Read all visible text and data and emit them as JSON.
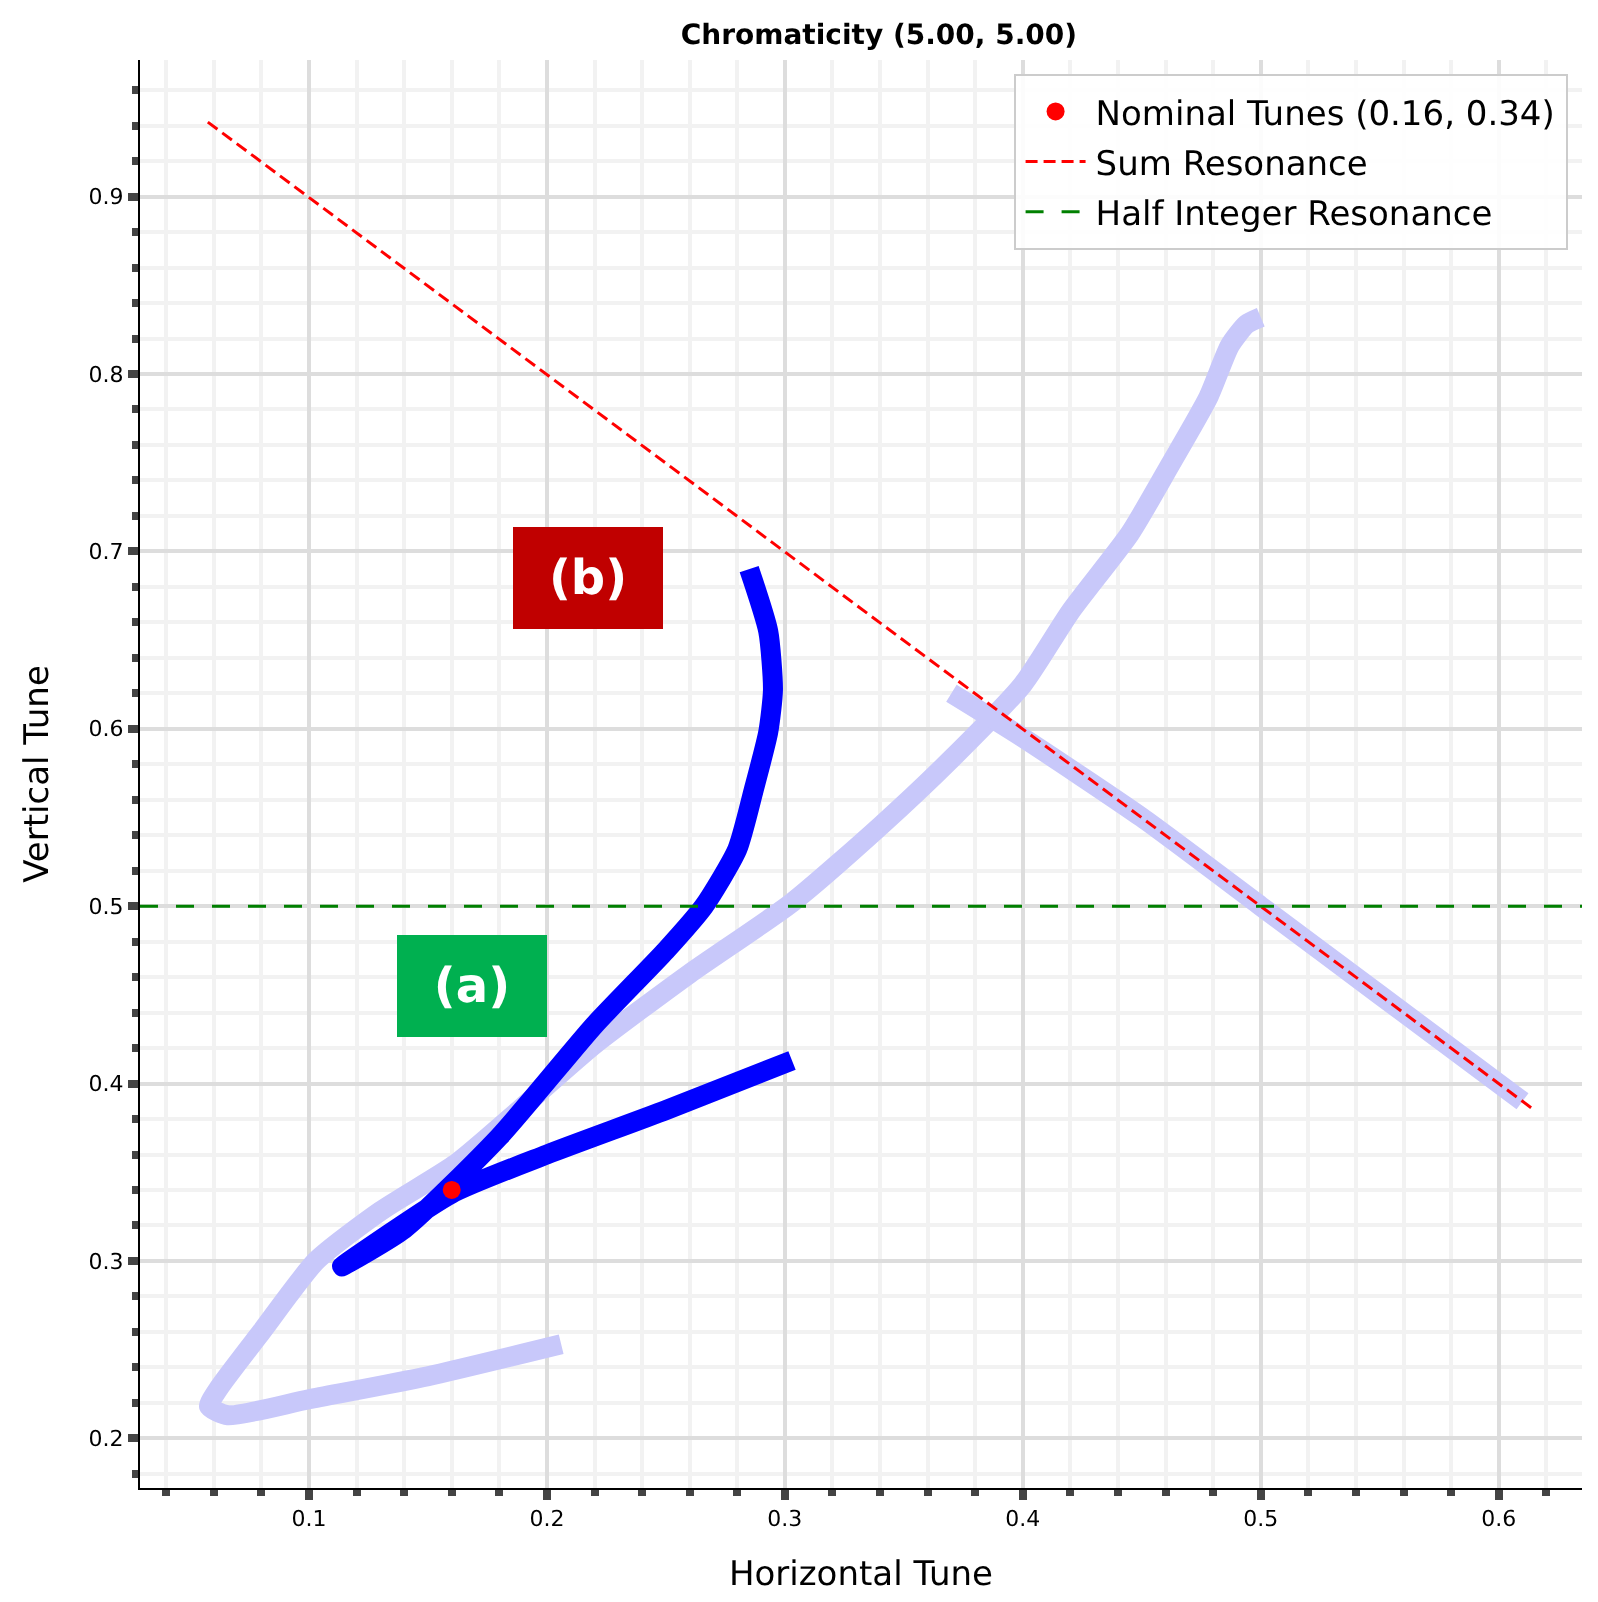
{
  "chart_data": {
    "type": "line",
    "title": "Chromaticity (5.00, 5.00)",
    "xlabel": "Horizontal Tune",
    "ylabel": "Vertical Tune",
    "xlim": [
      0.029,
      0.635
    ],
    "ylim": [
      0.172,
      0.977
    ],
    "xticks": [
      0.1,
      0.2,
      0.3,
      0.4,
      0.5,
      0.6
    ],
    "yticks": [
      0.2,
      0.3,
      0.4,
      0.5,
      0.6,
      0.7,
      0.8,
      0.9
    ],
    "grid": true,
    "legend": "top right",
    "series": [
      {
        "color": "#c8c8fa",
        "x": [
          0.206,
          0.15,
          0.1,
          0.066,
          0.058,
          0.062,
          0.08,
          0.103,
          0.13,
          0.162,
          0.19,
          0.22,
          0.26,
          0.303,
          0.34,
          0.37,
          0.4,
          0.42,
          0.445,
          0.462,
          0.478,
          0.487,
          0.494,
          0.5,
          null,
          0.37,
          0.4,
          0.45,
          0.5,
          0.55,
          0.61
        ],
        "values": [
          0.253,
          0.235,
          0.222,
          0.213,
          0.218,
          0.228,
          0.26,
          0.3,
          0.328,
          0.355,
          0.387,
          0.422,
          0.462,
          0.502,
          0.545,
          0.583,
          0.625,
          0.666,
          0.71,
          0.749,
          0.787,
          0.816,
          0.828,
          0.832,
          null,
          0.62,
          0.595,
          0.55,
          0.5,
          0.45,
          0.39
        ]
      },
      {
        "color": "#0000ff",
        "x": [
          0.303,
          0.25,
          0.2,
          0.16,
          0.114,
          0.14,
          0.18,
          0.22,
          0.25,
          0.266,
          0.28,
          0.287,
          0.293,
          0.295,
          0.293,
          0.285
        ],
        "values": [
          0.413,
          0.385,
          0.36,
          0.338,
          0.297,
          0.318,
          0.37,
          0.433,
          0.475,
          0.5,
          0.532,
          0.566,
          0.598,
          0.622,
          0.655,
          0.69
        ]
      },
      {
        "name": "Nominal Tunes (0.16, 0.34)",
        "type": "scatter",
        "marker": "circle",
        "color": "#ff0000",
        "x": [
          0.16
        ],
        "values": [
          0.34
        ]
      },
      {
        "name": "Sum Resonance",
        "color": "#ff0000",
        "line_style": "dashed",
        "x": [
          0.0575,
          0.614
        ],
        "values": [
          0.942,
          0.386
        ]
      }
    ],
    "ref_lines": [
      {
        "axis": "y",
        "value": 0.5,
        "label": "Half Integer Resonance",
        "color": "#008000",
        "line_style": "dashed"
      }
    ],
    "annotations": [
      "(a)",
      "(b)"
    ]
  }
}
